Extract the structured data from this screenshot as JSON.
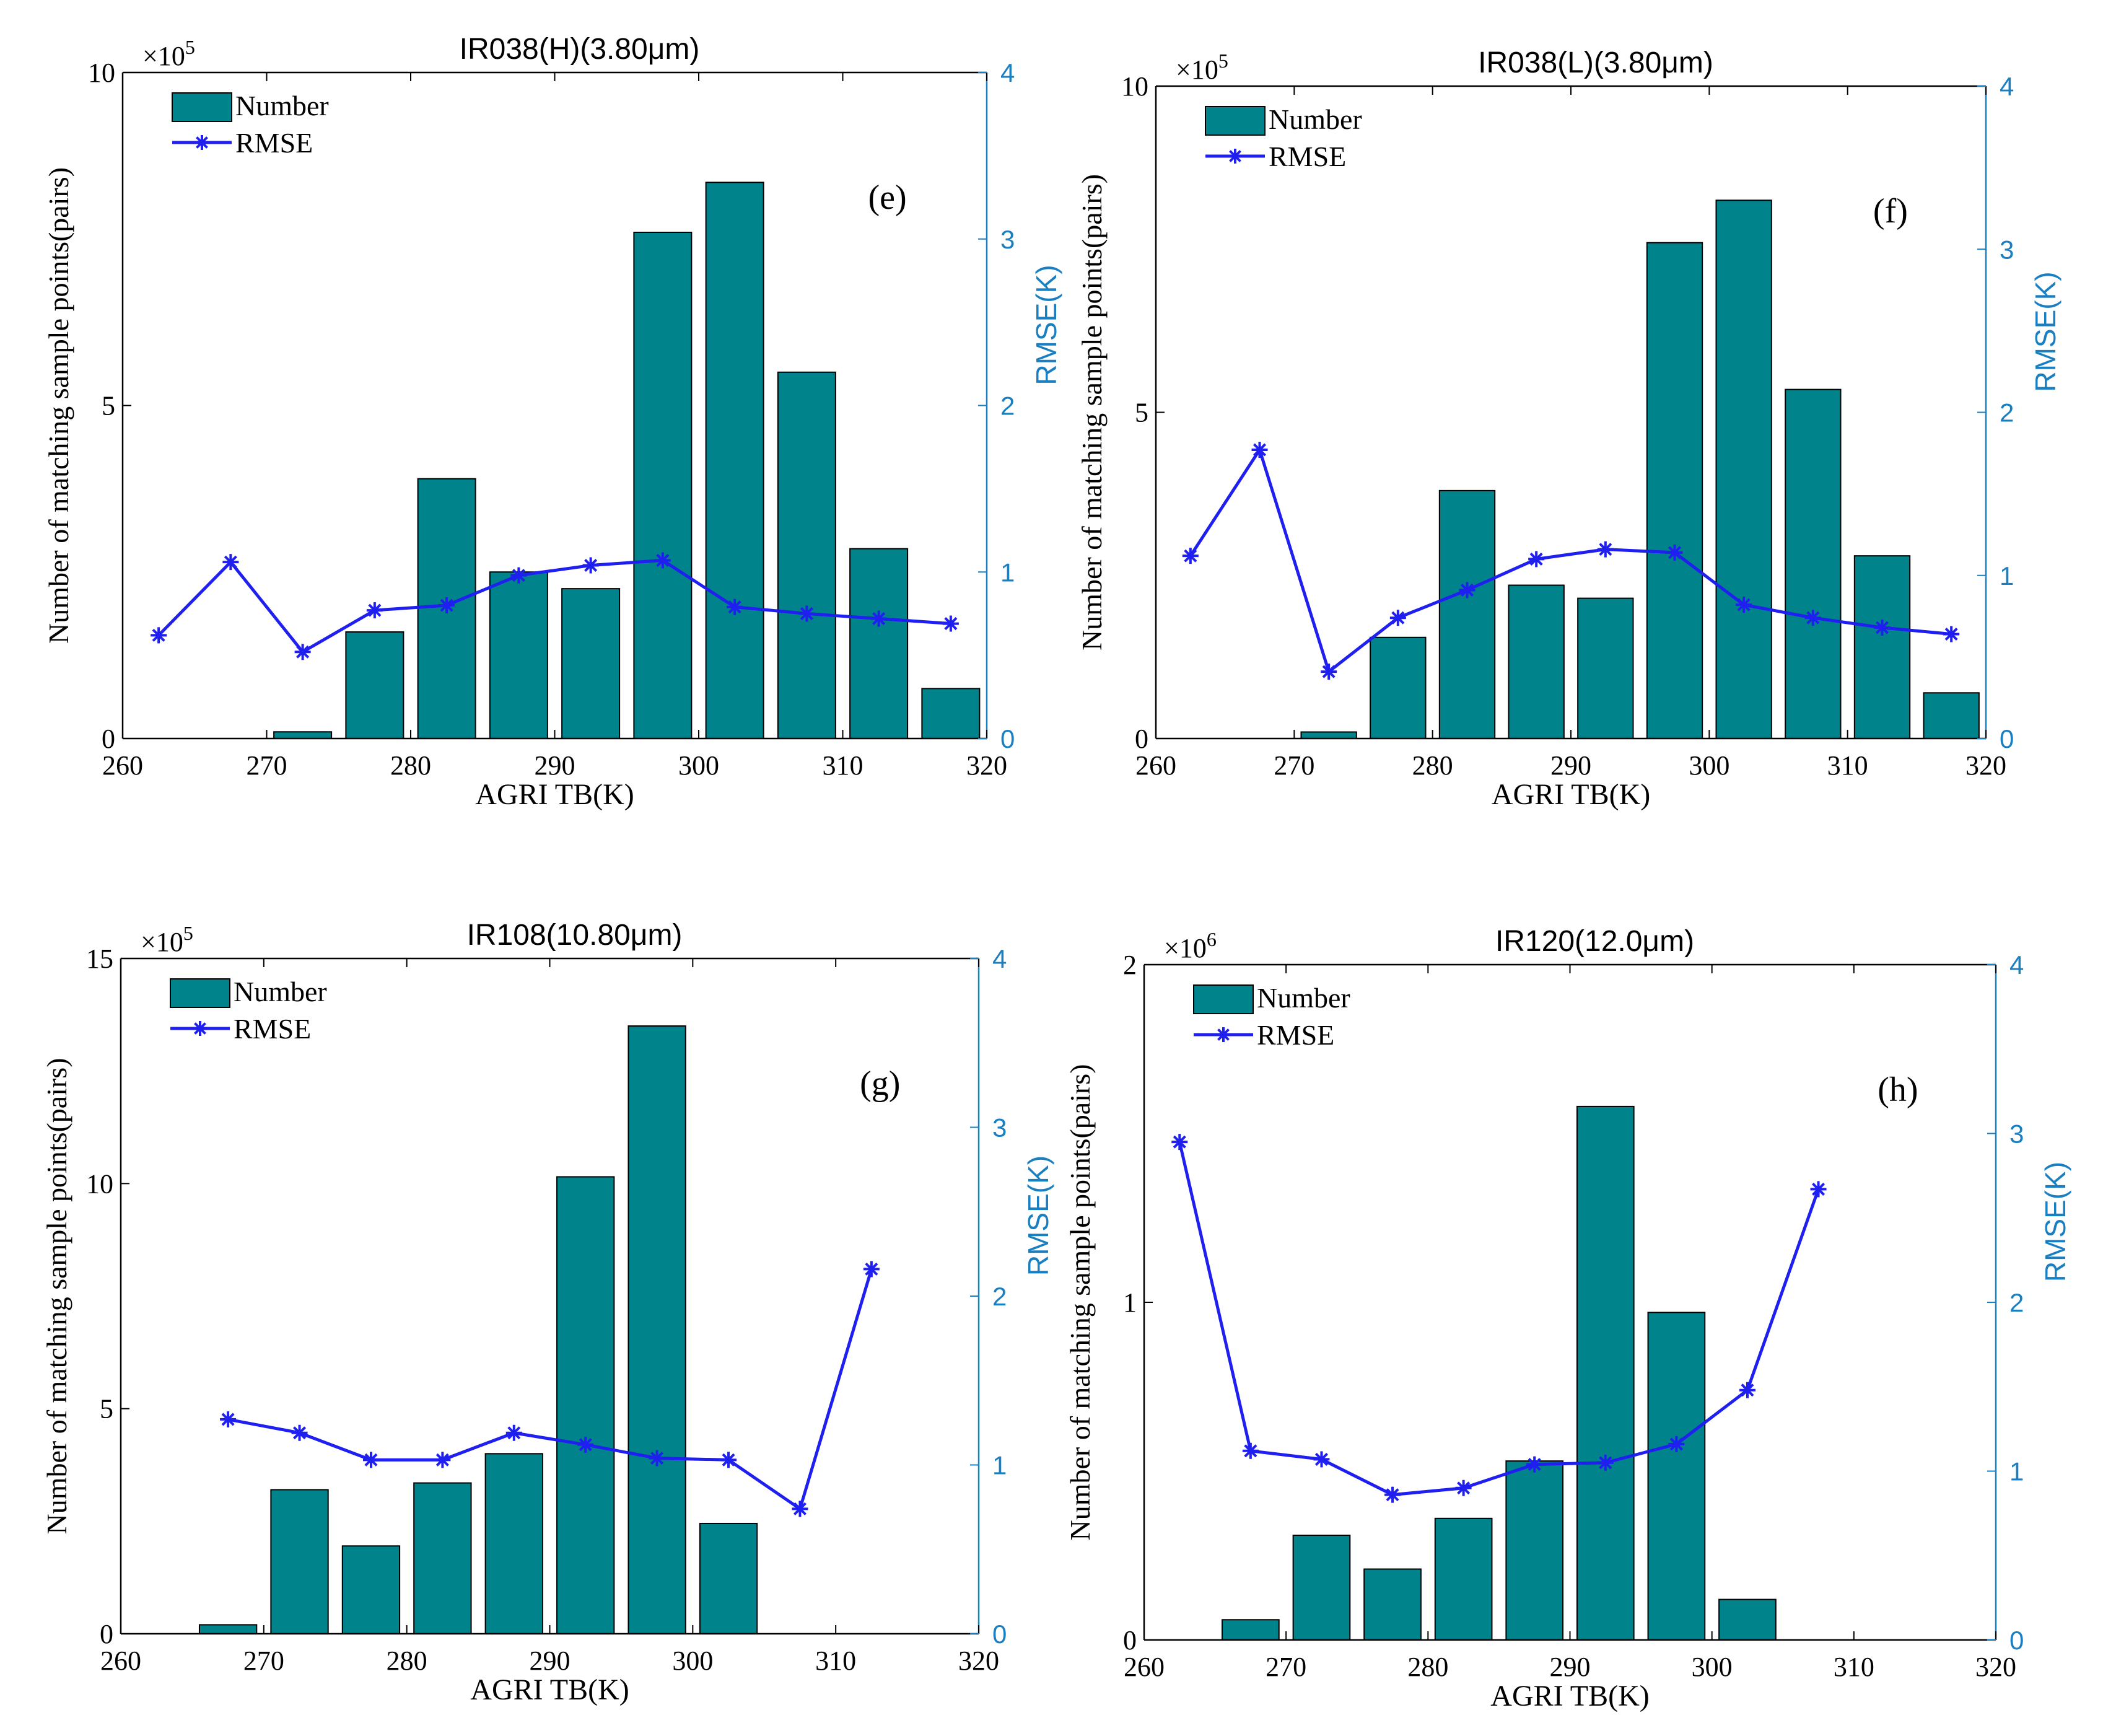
{
  "colors": {
    "bar_fill": "#00838a",
    "bar_edge": "#000000",
    "rmse_line": "#1f1ff0",
    "right_axis": "#1a7fc0",
    "axis": "#000000",
    "background": "#ffffff"
  },
  "chart_data": [
    {
      "type": "bar",
      "title": "IR038(H)(3.80μm)",
      "panel_label": "(e)",
      "xlabel": "AGRI TB(K)",
      "ylabel": "Number of matching sample points(pairs)",
      "y2label": "RMSE(K)",
      "y_scale_label": "×10",
      "y_scale_exp": "5",
      "xlim": [
        260,
        320
      ],
      "ylim": [
        0,
        10
      ],
      "y2lim": [
        0,
        4
      ],
      "xticks": [
        "260",
        "270",
        "280",
        "290",
        "300",
        "310",
        "320"
      ],
      "yticks": [
        "0",
        "5",
        "10"
      ],
      "y2ticks": [
        "0",
        "1",
        "2",
        "3",
        "4"
      ],
      "legend": [
        "Number",
        "RMSE"
      ],
      "legend_position": "top-left",
      "bar_x": [
        272.5,
        277.5,
        282.5,
        287.5,
        292.5,
        297.5,
        302.5,
        307.5,
        312.5,
        317.5
      ],
      "bar_values": [
        0.1,
        1.6,
        3.9,
        2.5,
        2.25,
        7.6,
        8.35,
        5.5,
        2.85,
        0.75
      ],
      "rmse_x": [
        262.5,
        267.5,
        272.5,
        277.5,
        282.5,
        287.5,
        292.5,
        297.5,
        302.5,
        307.5,
        312.5,
        317.5
      ],
      "rmse_values": [
        0.62,
        1.06,
        0.52,
        0.77,
        0.8,
        0.98,
        1.04,
        1.07,
        0.79,
        0.75,
        0.72,
        0.69
      ]
    },
    {
      "type": "bar",
      "title": "IR038(L)(3.80μm)",
      "panel_label": "(f)",
      "xlabel": "AGRI TB(K)",
      "ylabel": "Number of matching sample points(pairs)",
      "y2label": "RMSE(K)",
      "y_scale_label": "×10",
      "y_scale_exp": "5",
      "xlim": [
        260,
        320
      ],
      "ylim": [
        0,
        10
      ],
      "y2lim": [
        0,
        4
      ],
      "xticks": [
        "260",
        "270",
        "280",
        "290",
        "300",
        "310",
        "320"
      ],
      "yticks": [
        "0",
        "5",
        "10"
      ],
      "y2ticks": [
        "0",
        "1",
        "2",
        "3",
        "4"
      ],
      "legend": [
        "Number",
        "RMSE"
      ],
      "legend_position": "top-left",
      "bar_x": [
        272.5,
        277.5,
        282.5,
        287.5,
        292.5,
        297.5,
        302.5,
        307.5,
        312.5,
        317.5
      ],
      "bar_values": [
        0.1,
        1.55,
        3.8,
        2.35,
        2.15,
        7.6,
        8.25,
        5.35,
        2.8,
        0.7
      ],
      "rmse_x": [
        262.5,
        267.5,
        272.5,
        277.5,
        282.5,
        287.5,
        292.5,
        297.5,
        302.5,
        307.5,
        312.5,
        317.5
      ],
      "rmse_values": [
        1.12,
        1.77,
        0.41,
        0.74,
        0.91,
        1.1,
        1.16,
        1.14,
        0.82,
        0.74,
        0.68,
        0.64
      ]
    },
    {
      "type": "bar",
      "title": "IR108(10.80μm)",
      "panel_label": "(g)",
      "xlabel": "AGRI TB(K)",
      "ylabel": "Number of matching sample points(pairs)",
      "y2label": "RMSE(K)",
      "y_scale_label": "×10",
      "y_scale_exp": "5",
      "xlim": [
        260,
        320
      ],
      "ylim": [
        0,
        15
      ],
      "y2lim": [
        0,
        4
      ],
      "xticks": [
        "260",
        "270",
        "280",
        "290",
        "300",
        "310",
        "320"
      ],
      "yticks": [
        "0",
        "5",
        "10",
        "15"
      ],
      "y2ticks": [
        "0",
        "1",
        "2",
        "3",
        "4"
      ],
      "legend": [
        "Number",
        "RMSE"
      ],
      "legend_position": "top-left",
      "bar_x": [
        267.5,
        272.5,
        277.5,
        282.5,
        287.5,
        292.5,
        297.5,
        302.5
      ],
      "bar_values": [
        0.2,
        3.2,
        1.95,
        3.35,
        4.0,
        10.15,
        13.5,
        2.45
      ],
      "rmse_x": [
        267.5,
        272.5,
        277.5,
        282.5,
        287.5,
        292.5,
        297.5,
        302.5,
        307.5,
        312.5
      ],
      "rmse_values": [
        1.27,
        1.19,
        1.03,
        1.03,
        1.19,
        1.12,
        1.04,
        1.03,
        0.74,
        2.16
      ]
    },
    {
      "type": "bar",
      "title": "IR120(12.0μm)",
      "panel_label": "(h)",
      "xlabel": "AGRI TB(K)",
      "ylabel": "Number of matching sample points(pairs)",
      "y2label": "RMSE(K)",
      "y_scale_label": "×10",
      "y_scale_exp": "6",
      "xlim": [
        260,
        320
      ],
      "ylim": [
        0,
        2
      ],
      "y2lim": [
        0,
        4
      ],
      "xticks": [
        "260",
        "270",
        "280",
        "290",
        "300",
        "310",
        "320"
      ],
      "yticks": [
        "0",
        "1",
        "2"
      ],
      "y2ticks": [
        "0",
        "1",
        "2",
        "3",
        "4"
      ],
      "legend": [
        "Number",
        "RMSE"
      ],
      "legend_position": "top-left",
      "bar_x": [
        267.5,
        272.5,
        277.5,
        282.5,
        287.5,
        292.5,
        297.5,
        302.5
      ],
      "bar_values": [
        0.06,
        0.31,
        0.21,
        0.36,
        0.53,
        1.58,
        0.97,
        0.12
      ],
      "rmse_x": [
        262.5,
        267.5,
        272.5,
        277.5,
        282.5,
        287.5,
        292.5,
        297.5,
        302.5,
        307.5
      ],
      "rmse_values": [
        2.95,
        1.12,
        1.07,
        0.86,
        0.9,
        1.04,
        1.05,
        1.16,
        1.48,
        2.67
      ]
    }
  ]
}
